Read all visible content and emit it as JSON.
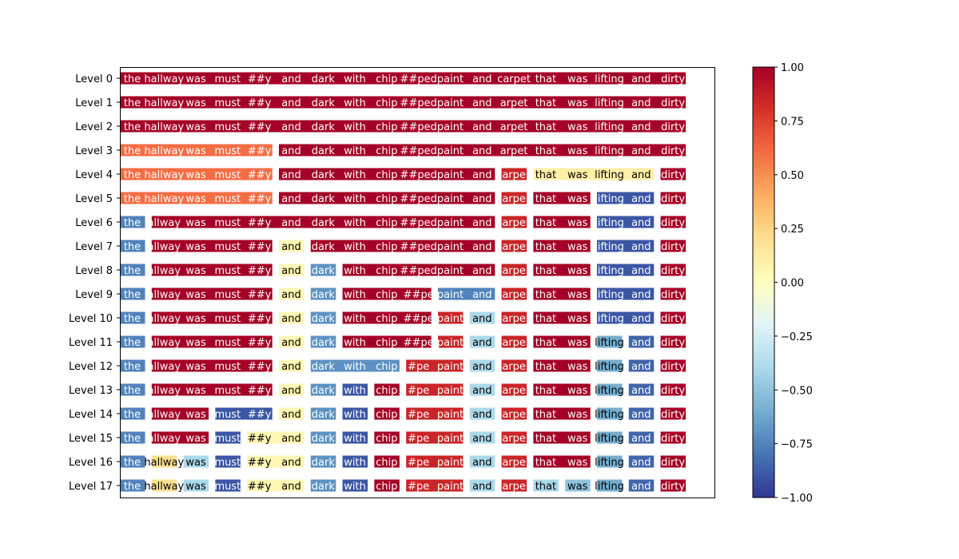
{
  "chart_data": {
    "type": "heatmap",
    "title": "",
    "xlabel": "",
    "ylabel": "",
    "row_labels": [
      "Level 0",
      "Level 1",
      "Level 2",
      "Level 3",
      "Level 4",
      "Level 5",
      "Level 6",
      "Level 7",
      "Level 8",
      "Level 9",
      "Level 10",
      "Level 11",
      "Level 12",
      "Level 13",
      "Level 14",
      "Level 15",
      "Level 16",
      "Level 17"
    ],
    "tokens": [
      "the",
      "hallway",
      "was",
      "must",
      "##y",
      "and",
      "dark",
      "with",
      "chip",
      "##ped",
      "paint",
      "and",
      "carpet",
      "that",
      "was",
      "lifting",
      "and",
      "dirty"
    ],
    "displayed_tokens": [
      [
        "the",
        "hallway",
        "was",
        "must",
        "##y",
        "and",
        "dark",
        "with",
        "chip",
        "##ped",
        "paint",
        "and",
        "carpet",
        "that",
        "was",
        "lifting",
        "and",
        "dirty"
      ],
      [
        "the",
        "hallway",
        "was",
        "must",
        "##y",
        "and",
        "dark",
        "with",
        "chip",
        "##ped",
        "paint",
        "and",
        "arpet",
        "that",
        "was",
        "lifting",
        "and",
        "dirty"
      ],
      [
        "the",
        "hallway",
        "was",
        "must",
        "##y",
        "and",
        "dark",
        "with",
        "chip",
        "##ped",
        "paint",
        "and",
        "arpet",
        "that",
        "was",
        "lifting",
        "and",
        "dirty"
      ],
      [
        "the",
        "hallway",
        "was",
        "must",
        "##y",
        "and",
        "dark",
        "with",
        "chip",
        "##ped",
        "paint",
        "and",
        "arpet",
        "that",
        "was",
        "lifting",
        "and",
        "dirty"
      ],
      [
        "the",
        "hallway",
        "was",
        "must",
        "##y",
        "and",
        "dark",
        "with",
        "chip",
        "##ped",
        "paint",
        "and",
        "arpe",
        "that",
        "was",
        "lifting",
        "and",
        "dirty"
      ],
      [
        "the",
        "hallway",
        "was",
        "must",
        "##y",
        "and",
        "dark",
        "with",
        "chip",
        "##ped",
        "paint",
        "and",
        "arpe",
        "that",
        "was",
        "lifting",
        "and",
        "dirty"
      ],
      [
        "the",
        "allway",
        "was",
        "must",
        "##y",
        "and",
        "dark",
        "with",
        "chip",
        "##ped",
        "paint",
        "and",
        "arpe",
        "that",
        "was",
        "lifting",
        "and",
        "dirty"
      ],
      [
        "the",
        "allway",
        "was",
        "must",
        "##y",
        "and",
        "dark",
        "with",
        "chip",
        "##ped",
        "paint",
        "and",
        "arpe",
        "that",
        "was",
        "lifting",
        "and",
        "dirty"
      ],
      [
        "the",
        "allway",
        "was",
        "must",
        "##y",
        "and",
        "dark",
        "with",
        "chip",
        "##ped",
        "paint",
        "and",
        "arpe",
        "that",
        "was",
        "lifting",
        "and",
        "dirty"
      ],
      [
        "the",
        "allway",
        "was",
        "must",
        "##y",
        "and",
        "dark",
        "with",
        "chip",
        "##pe",
        "paint",
        "and",
        "arpe",
        "that",
        "was",
        "lifting",
        "and",
        "dirty"
      ],
      [
        "the",
        "allway",
        "was",
        "must",
        "##y",
        "and",
        "dark",
        "with",
        "chip",
        "##pe",
        "paint",
        "and",
        "arpe",
        "that",
        "was",
        "lifting",
        "and",
        "dirty"
      ],
      [
        "the",
        "allway",
        "was",
        "must",
        "##y",
        "and",
        "dark",
        "with",
        "chip",
        "##pe",
        "paint",
        "and",
        "arpe",
        "that",
        "was",
        "lifting",
        "and",
        "dirty"
      ],
      [
        "the",
        "allway",
        "was",
        "must",
        "##y",
        "and",
        "dark",
        "with",
        "chip",
        "#pe",
        "paint",
        "and",
        "arpe",
        "that",
        "was",
        "lifting",
        "and",
        "dirty"
      ],
      [
        "the",
        "allway",
        "was",
        "must",
        "##y",
        "and",
        "dark",
        "with",
        "chip",
        "#pe",
        "paint",
        "and",
        "arpe",
        "that",
        "was",
        "lifting",
        "and",
        "dirty"
      ],
      [
        "the",
        "allway",
        "was",
        "must",
        "##y",
        "and",
        "dark",
        "with",
        "chip",
        "#pe",
        "paint",
        "and",
        "arpe",
        "that",
        "was",
        "lifting",
        "and",
        "dirty"
      ],
      [
        "the",
        "allway",
        "was",
        "must",
        "##y",
        "and",
        "dark",
        "with",
        "chip",
        "#pe",
        "paint",
        "and",
        "arpe",
        "that",
        "was",
        "lifting",
        "and",
        "dirty"
      ],
      [
        "the",
        "hallway",
        "was",
        "must",
        "##y",
        "and",
        "dark",
        "with",
        "chip",
        "#pe",
        "paint",
        "and",
        "arpe",
        "that",
        "was",
        "lifting",
        "and",
        "dirty"
      ],
      [
        "the",
        "hallway",
        "was",
        "must",
        "##y",
        "and",
        "dark",
        "with",
        "chip",
        "#pe",
        "paint",
        "and",
        "arpe",
        "that",
        "was",
        "lifting",
        "and",
        "dirty"
      ]
    ],
    "values": [
      [
        1,
        1,
        1,
        1,
        1,
        1,
        1,
        1,
        1,
        1,
        1,
        1,
        1,
        1,
        1,
        1,
        1,
        1
      ],
      [
        1,
        1,
        1,
        1,
        1,
        1,
        1,
        1,
        1,
        1,
        1,
        1,
        1,
        1,
        1,
        1,
        1,
        1
      ],
      [
        1,
        1,
        1,
        1,
        1,
        1,
        1,
        1,
        1,
        1,
        1,
        1,
        1,
        1,
        1,
        1,
        1,
        1
      ],
      [
        0.6,
        0.6,
        0.6,
        0.6,
        0.6,
        1,
        1,
        1,
        1,
        1,
        1,
        1,
        1,
        1,
        1,
        1,
        1,
        1
      ],
      [
        0.6,
        0.6,
        0.6,
        0.6,
        0.6,
        1,
        1,
        1,
        1,
        1,
        1,
        1,
        0.85,
        0.1,
        0.1,
        0.1,
        0.1,
        1
      ],
      [
        0.6,
        0.6,
        0.6,
        0.6,
        0.6,
        1,
        1,
        1,
        1,
        1,
        1,
        1,
        0.85,
        1,
        1,
        -0.9,
        -0.9,
        1
      ],
      [
        -0.75,
        1,
        1,
        1,
        1,
        1,
        1,
        1,
        1,
        1,
        1,
        1,
        0.85,
        1,
        1,
        -0.9,
        -0.9,
        1
      ],
      [
        -0.75,
        1,
        1,
        1,
        1,
        0.05,
        1,
        1,
        1,
        1,
        1,
        1,
        0.85,
        1,
        1,
        -0.9,
        -0.9,
        1
      ],
      [
        -0.75,
        1,
        1,
        1,
        1,
        0.05,
        -0.7,
        1,
        1,
        1,
        1,
        1,
        0.85,
        1,
        1,
        -0.9,
        -0.9,
        1
      ],
      [
        -0.75,
        1,
        1,
        1,
        1,
        0.05,
        -0.7,
        1,
        1,
        1,
        -0.75,
        -0.75,
        0.85,
        1,
        1,
        -0.9,
        -0.9,
        1
      ],
      [
        -0.75,
        1,
        1,
        1,
        1,
        0.05,
        -0.7,
        1,
        1,
        1,
        0.85,
        -0.4,
        0.85,
        1,
        1,
        -0.9,
        -0.9,
        1
      ],
      [
        -0.75,
        1,
        1,
        1,
        1,
        0.05,
        -0.7,
        1,
        1,
        1,
        0.85,
        -0.4,
        0.85,
        1,
        1,
        -0.6,
        -0.85,
        1
      ],
      [
        -0.75,
        1,
        1,
        1,
        1,
        0.05,
        -0.7,
        -0.7,
        -0.7,
        0.85,
        0.85,
        -0.4,
        0.85,
        1,
        1,
        -0.6,
        -0.85,
        1
      ],
      [
        -0.75,
        1,
        1,
        1,
        1,
        0.05,
        -0.7,
        -0.9,
        1,
        0.85,
        0.85,
        -0.4,
        0.85,
        1,
        1,
        -0.6,
        -0.85,
        1
      ],
      [
        -0.75,
        1,
        1,
        -0.9,
        -0.9,
        0.05,
        -0.7,
        -0.9,
        1,
        0.85,
        0.85,
        -0.4,
        0.85,
        1,
        1,
        -0.6,
        -0.85,
        1
      ],
      [
        -0.75,
        1,
        1,
        -0.9,
        0.05,
        0.05,
        -0.7,
        -0.9,
        1,
        0.85,
        0.85,
        -0.4,
        0.85,
        1,
        1,
        -0.6,
        -0.85,
        1
      ],
      [
        -0.75,
        0.2,
        -0.4,
        -0.9,
        0.05,
        0.05,
        -0.7,
        -0.9,
        1,
        0.85,
        0.85,
        -0.4,
        0.85,
        1,
        1,
        -0.6,
        -0.85,
        1
      ],
      [
        -0.75,
        0.2,
        -0.4,
        -0.9,
        0.05,
        0.05,
        -0.7,
        -0.9,
        1,
        0.85,
        0.85,
        -0.4,
        0.85,
        -0.4,
        -0.5,
        -0.6,
        -0.85,
        1
      ]
    ],
    "colormap": "RdYlBu_r",
    "clim": [
      -1,
      1
    ],
    "colorbar_ticks": [
      "1.00",
      "0.75",
      "0.50",
      "0.25",
      "0.00",
      "−0.25",
      "−0.50",
      "−0.75",
      "−1.00"
    ],
    "colorbar_tick_values": [
      1,
      0.75,
      0.5,
      0.25,
      0,
      -0.25,
      -0.5,
      -0.75,
      -1
    ]
  }
}
